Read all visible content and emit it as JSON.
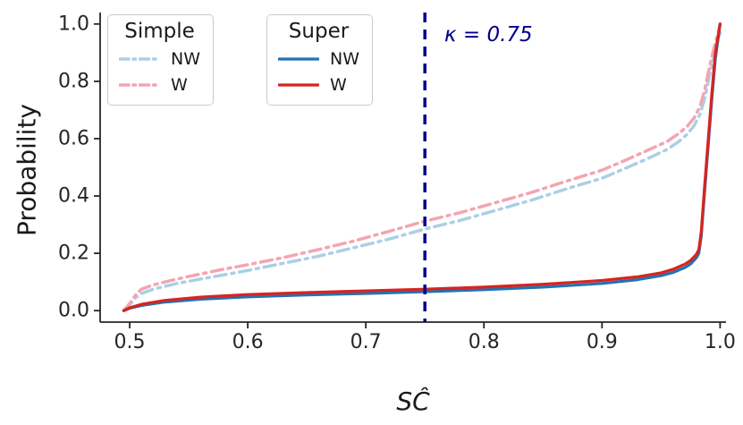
{
  "chart_data": {
    "type": "line",
    "title": "",
    "xlabel": "SĈ",
    "ylabel": "Probability",
    "xlim": [
      0.475,
      1.005
    ],
    "ylim": [
      -0.04,
      1.04
    ],
    "grid": false,
    "background": "#ffffff",
    "axis_color": "#262626",
    "xticks": {
      "values": [
        0.5,
        0.6,
        0.7,
        0.8,
        0.9,
        1.0
      ],
      "labels": [
        "0.5",
        "0.6",
        "0.7",
        "0.8",
        "0.9",
        "1.0"
      ]
    },
    "yticks": {
      "values": [
        0.0,
        0.2,
        0.4,
        0.6,
        0.8,
        1.0
      ],
      "labels": [
        "0.0",
        "0.2",
        "0.4",
        "0.6",
        "0.8",
        "1.0"
      ]
    },
    "annotation": {
      "text": "κ = 0.75",
      "x": 0.75,
      "color": "#00008b"
    },
    "vline": {
      "x": 0.75,
      "color": "#00008b",
      "style": "dashed",
      "width": 3.5
    },
    "legends": [
      {
        "title": "Simple",
        "position": "upper-left",
        "entries": [
          {
            "label": "NW",
            "series": "simple_nw"
          },
          {
            "label": "W",
            "series": "simple_w"
          }
        ]
      },
      {
        "title": "Super",
        "position": "upper-left-2",
        "entries": [
          {
            "label": "NW",
            "series": "super_nw"
          },
          {
            "label": "W",
            "series": "super_w"
          }
        ]
      }
    ],
    "series": [
      {
        "name": "simple_nw",
        "legend_group": "Simple",
        "label": "NW",
        "color": "#abcfe5",
        "dash": "dashdot",
        "width": 3.5,
        "points": [
          [
            0.495,
            0.0
          ],
          [
            0.5,
            0.02
          ],
          [
            0.505,
            0.045
          ],
          [
            0.51,
            0.06
          ],
          [
            0.52,
            0.075
          ],
          [
            0.54,
            0.095
          ],
          [
            0.56,
            0.11
          ],
          [
            0.58,
            0.125
          ],
          [
            0.6,
            0.14
          ],
          [
            0.63,
            0.165
          ],
          [
            0.66,
            0.19
          ],
          [
            0.69,
            0.22
          ],
          [
            0.72,
            0.25
          ],
          [
            0.75,
            0.285
          ],
          [
            0.78,
            0.315
          ],
          [
            0.81,
            0.35
          ],
          [
            0.84,
            0.385
          ],
          [
            0.87,
            0.425
          ],
          [
            0.9,
            0.462
          ],
          [
            0.92,
            0.497
          ],
          [
            0.94,
            0.533
          ],
          [
            0.955,
            0.562
          ],
          [
            0.965,
            0.59
          ],
          [
            0.972,
            0.615
          ],
          [
            0.978,
            0.645
          ],
          [
            0.983,
            0.685
          ],
          [
            0.987,
            0.74
          ],
          [
            0.991,
            0.82
          ],
          [
            0.995,
            0.89
          ],
          [
            0.998,
            0.94
          ],
          [
            1.0,
            0.97
          ]
        ]
      },
      {
        "name": "simple_w",
        "legend_group": "Simple",
        "label": "W",
        "color": "#f3a5b1",
        "dash": "dashdot",
        "width": 3.5,
        "points": [
          [
            0.495,
            0.0
          ],
          [
            0.5,
            0.025
          ],
          [
            0.505,
            0.055
          ],
          [
            0.51,
            0.075
          ],
          [
            0.52,
            0.09
          ],
          [
            0.54,
            0.11
          ],
          [
            0.56,
            0.128
          ],
          [
            0.58,
            0.145
          ],
          [
            0.6,
            0.16
          ],
          [
            0.63,
            0.185
          ],
          [
            0.66,
            0.213
          ],
          [
            0.69,
            0.243
          ],
          [
            0.72,
            0.277
          ],
          [
            0.75,
            0.312
          ],
          [
            0.78,
            0.342
          ],
          [
            0.81,
            0.377
          ],
          [
            0.84,
            0.412
          ],
          [
            0.87,
            0.452
          ],
          [
            0.9,
            0.49
          ],
          [
            0.92,
            0.525
          ],
          [
            0.94,
            0.562
          ],
          [
            0.955,
            0.59
          ],
          [
            0.965,
            0.618
          ],
          [
            0.972,
            0.642
          ],
          [
            0.978,
            0.672
          ],
          [
            0.983,
            0.712
          ],
          [
            0.987,
            0.77
          ],
          [
            0.991,
            0.85
          ],
          [
            0.995,
            0.92
          ],
          [
            0.998,
            0.965
          ],
          [
            1.0,
            1.0
          ]
        ]
      },
      {
        "name": "super_nw",
        "legend_group": "Super",
        "label": "NW",
        "color": "#2272b4",
        "dash": "solid",
        "width": 3.2,
        "points": [
          [
            0.495,
            0.0
          ],
          [
            0.5,
            0.008
          ],
          [
            0.51,
            0.018
          ],
          [
            0.53,
            0.03
          ],
          [
            0.56,
            0.04
          ],
          [
            0.6,
            0.048
          ],
          [
            0.65,
            0.055
          ],
          [
            0.7,
            0.06
          ],
          [
            0.75,
            0.066
          ],
          [
            0.8,
            0.073
          ],
          [
            0.85,
            0.082
          ],
          [
            0.9,
            0.095
          ],
          [
            0.93,
            0.108
          ],
          [
            0.95,
            0.122
          ],
          [
            0.96,
            0.133
          ],
          [
            0.97,
            0.15
          ],
          [
            0.975,
            0.163
          ],
          [
            0.98,
            0.185
          ],
          [
            0.982,
            0.2
          ],
          [
            0.984,
            0.26
          ],
          [
            0.987,
            0.42
          ],
          [
            0.99,
            0.58
          ],
          [
            0.993,
            0.74
          ],
          [
            0.996,
            0.88
          ],
          [
            1.0,
            1.0
          ]
        ]
      },
      {
        "name": "super_w",
        "legend_group": "Super",
        "label": "W",
        "color": "#d7241f",
        "dash": "solid",
        "width": 3.2,
        "points": [
          [
            0.495,
            0.0
          ],
          [
            0.5,
            0.01
          ],
          [
            0.51,
            0.022
          ],
          [
            0.53,
            0.036
          ],
          [
            0.56,
            0.047
          ],
          [
            0.6,
            0.056
          ],
          [
            0.65,
            0.063
          ],
          [
            0.7,
            0.069
          ],
          [
            0.75,
            0.075
          ],
          [
            0.8,
            0.082
          ],
          [
            0.85,
            0.092
          ],
          [
            0.9,
            0.105
          ],
          [
            0.93,
            0.118
          ],
          [
            0.95,
            0.132
          ],
          [
            0.96,
            0.144
          ],
          [
            0.97,
            0.162
          ],
          [
            0.975,
            0.175
          ],
          [
            0.98,
            0.197
          ],
          [
            0.982,
            0.213
          ],
          [
            0.984,
            0.275
          ],
          [
            0.987,
            0.44
          ],
          [
            0.99,
            0.6
          ],
          [
            0.993,
            0.76
          ],
          [
            0.996,
            0.9
          ],
          [
            1.0,
            1.0
          ]
        ]
      }
    ]
  }
}
